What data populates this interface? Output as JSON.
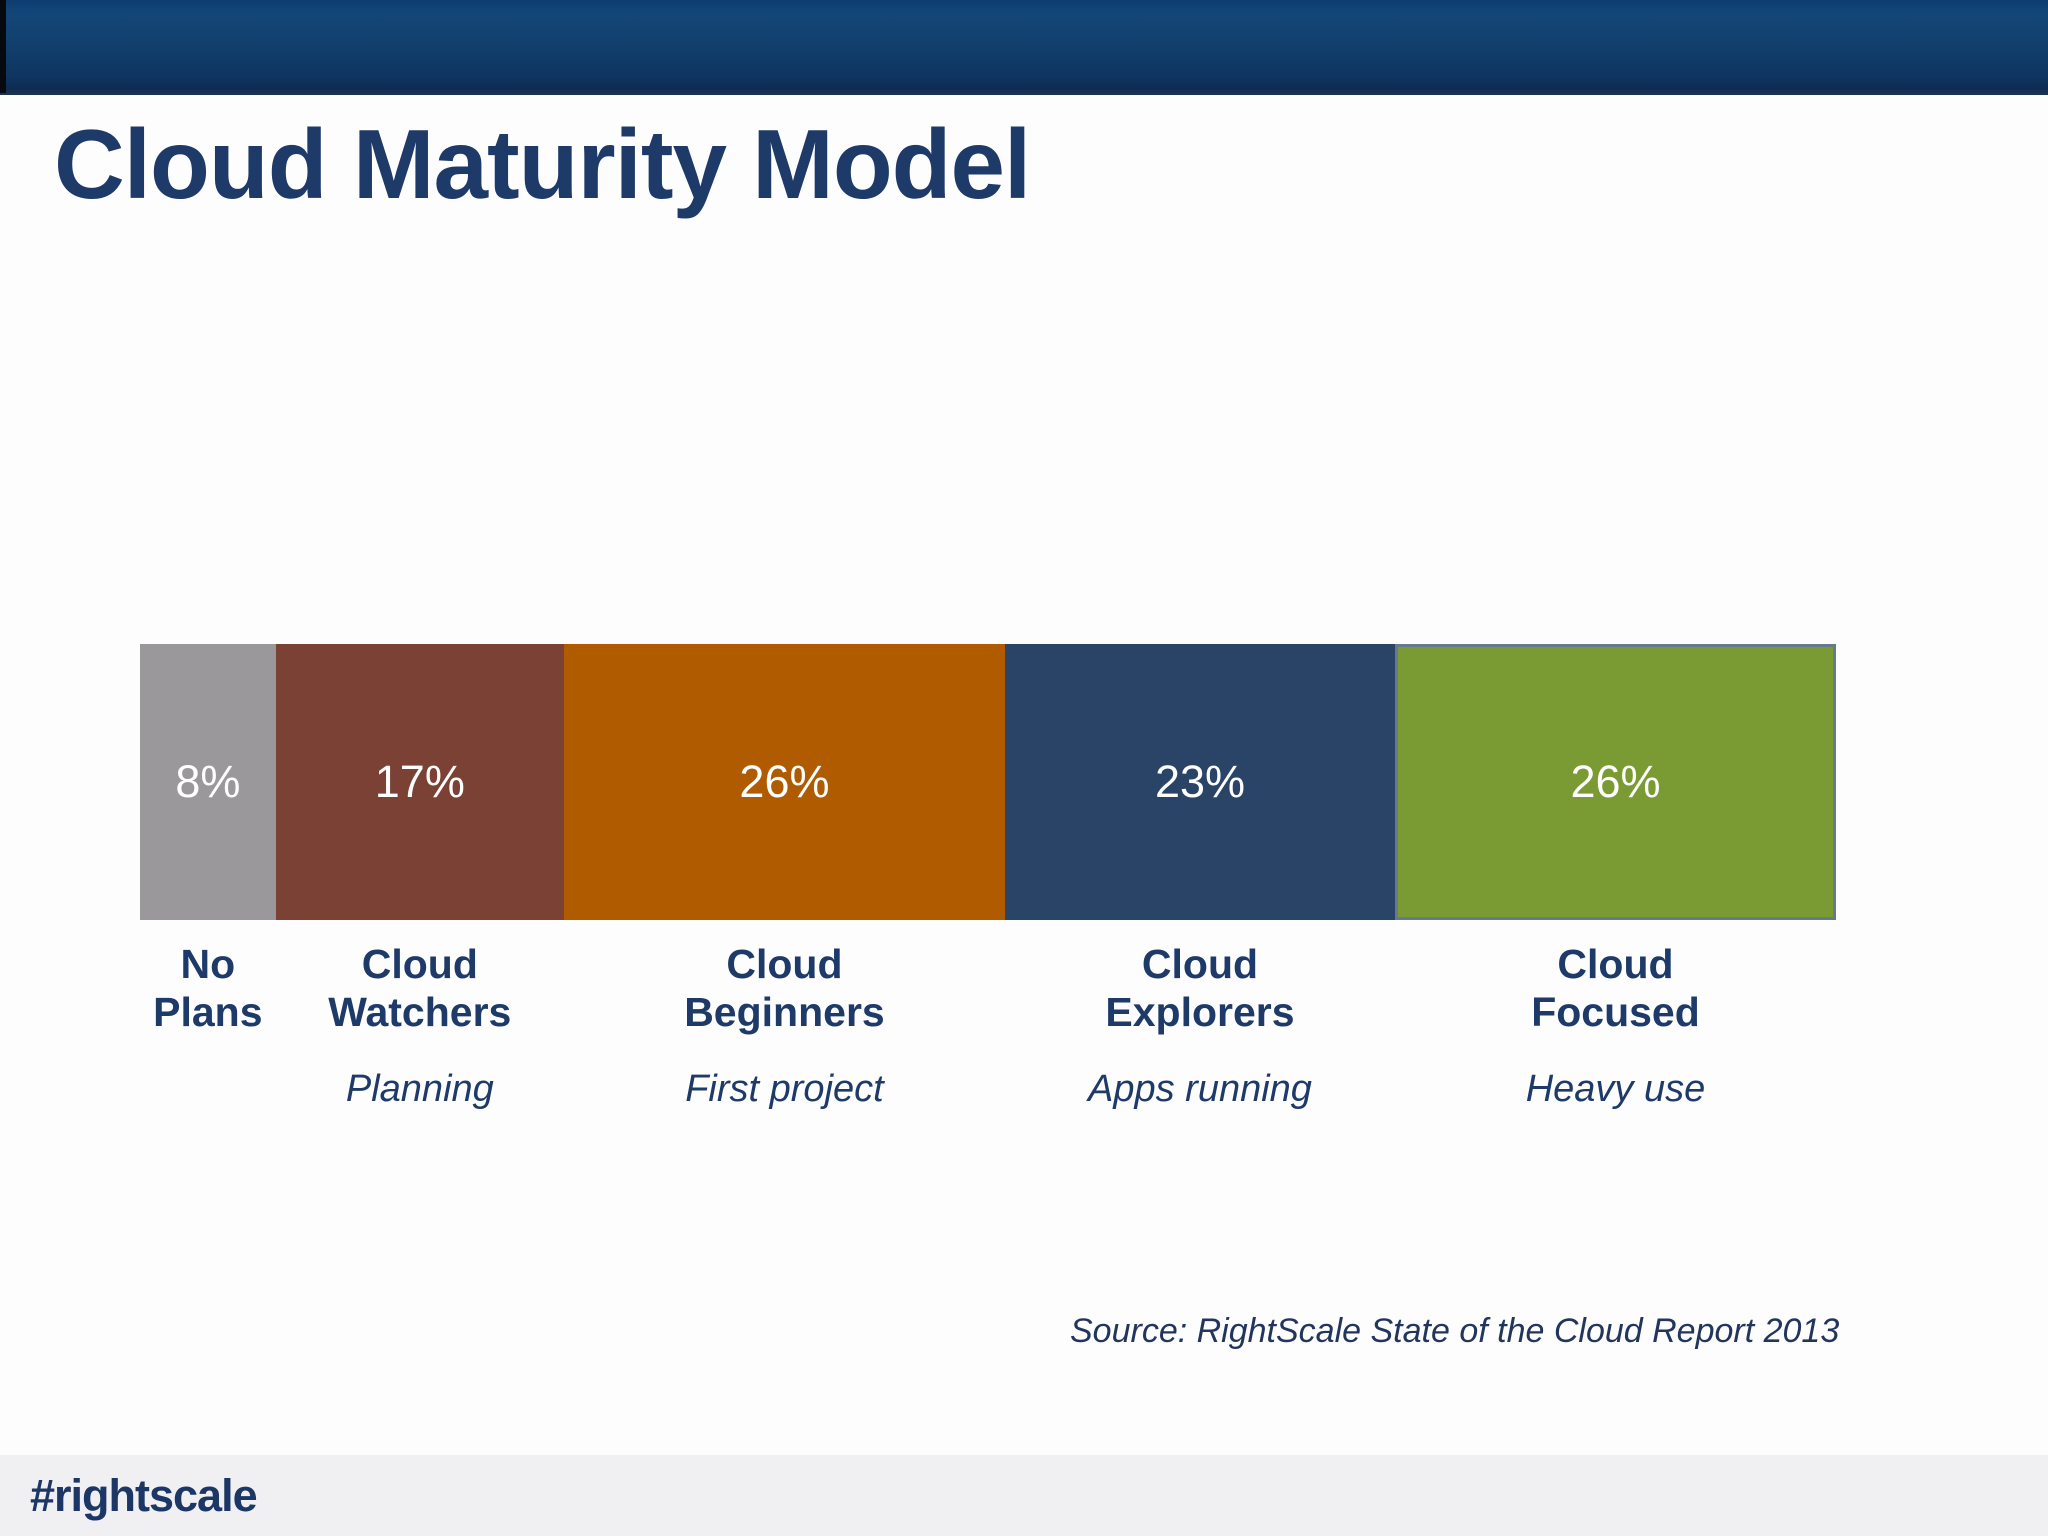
{
  "title": "Cloud Maturity Model",
  "source": "Source: RightScale State of the Cloud Report 2013",
  "footer": {
    "hashtag": "#rightscale"
  },
  "colors": {
    "header_top": "#134678",
    "header_bottom": "#0d2c52",
    "title_text": "#1e3a68",
    "label_text": "#1e3a68",
    "value_text": "#ffffff",
    "footer_bg": "#f0f0f2",
    "footer_text": "#1c3765"
  },
  "chart_data": {
    "type": "bar",
    "variant": "horizontal-stacked-single-row",
    "title": "Cloud Maturity Model",
    "unit": "percent",
    "total": 100,
    "categories": [
      "No Plans",
      "Cloud Watchers",
      "Cloud Beginners",
      "Cloud Explorers",
      "Cloud Focused"
    ],
    "values": [
      8,
      17,
      26,
      23,
      26
    ],
    "value_labels": [
      "8%",
      "17%",
      "26%",
      "23%",
      "26%"
    ],
    "sublabels": [
      "",
      "Planning",
      "First project",
      "Apps running",
      "Heavy use"
    ],
    "segment_colors": [
      "#9a989a",
      "#7b4134",
      "#b15b00",
      "#294467",
      "#7a9b33"
    ],
    "segment_border_colors": [
      null,
      null,
      null,
      null,
      "#667a8e"
    ],
    "legend": "none",
    "grid": false
  }
}
